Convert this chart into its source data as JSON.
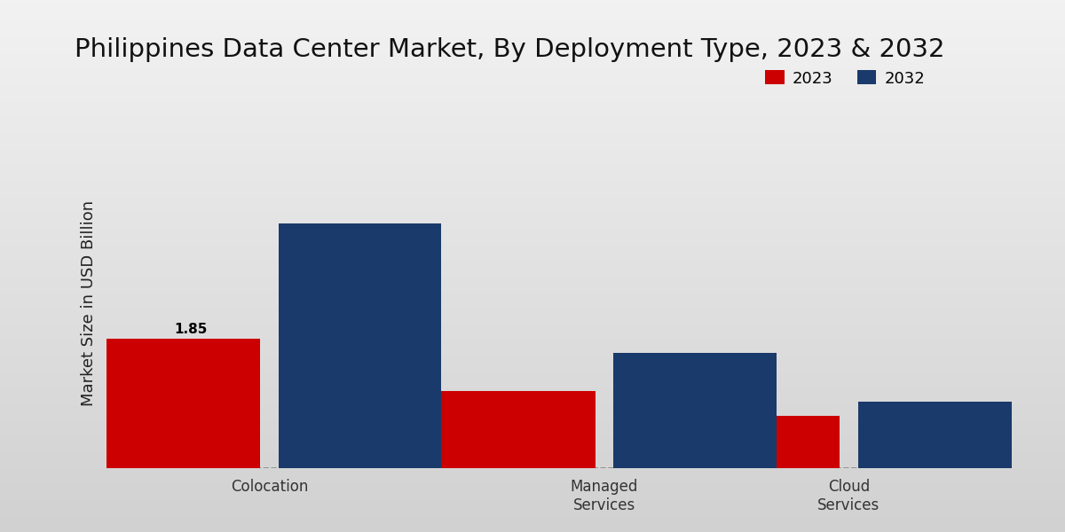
{
  "title": "Philippines Data Center Market, By Deployment Type, 2023 & 2032",
  "ylabel": "Market Size in USD Billion",
  "categories": [
    "Colocation",
    "Managed\nServices",
    "Cloud\nServices"
  ],
  "values_2023": [
    1.85,
    1.1,
    0.75
  ],
  "values_2032": [
    3.5,
    1.65,
    0.95
  ],
  "label_2023": "2023",
  "label_2032": "2032",
  "color_2023": "#CC0000",
  "color_2032": "#1A3A6B",
  "bar_annotation": "1.85",
  "background_top": "#DCDCDC",
  "background_bottom": "#C8C8C8",
  "title_fontsize": 21,
  "ylabel_fontsize": 13,
  "tick_fontsize": 12,
  "legend_fontsize": 13,
  "bar_width": 0.18,
  "bottom_bar_color": "#CC0000",
  "bottom_bar_height": 0.018
}
